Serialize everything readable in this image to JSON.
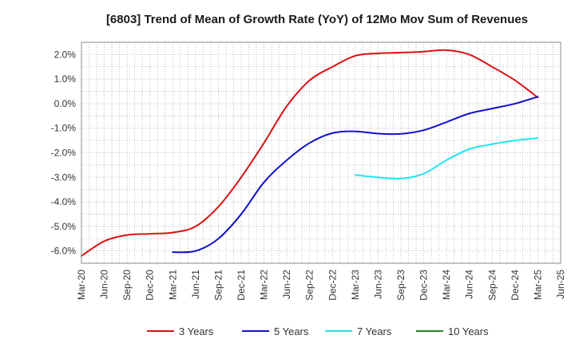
{
  "chart_data": {
    "type": "line",
    "title": "[6803]  Trend of Mean of Growth Rate (YoY) of 12Mo Mov Sum of Revenues",
    "xlabel": "",
    "ylabel": "",
    "x_ticks": [
      "Mar-20",
      "Jun-20",
      "Sep-20",
      "Dec-20",
      "Mar-21",
      "Jun-21",
      "Sep-21",
      "Dec-21",
      "Mar-22",
      "Jun-22",
      "Sep-22",
      "Dec-22",
      "Mar-23",
      "Jun-23",
      "Sep-23",
      "Dec-23",
      "Mar-24",
      "Jun-24",
      "Sep-24",
      "Dec-24",
      "Mar-25",
      "Jun-25"
    ],
    "y_ticks": [
      2.0,
      1.0,
      0.0,
      -1.0,
      -2.0,
      -3.0,
      -4.0,
      -5.0,
      -6.0
    ],
    "y_tick_labels": [
      "2.0%",
      "1.0%",
      "0.0%",
      "-1.0%",
      "-2.0%",
      "-3.0%",
      "-4.0%",
      "-5.0%",
      "-6.0%"
    ],
    "ylim": [
      -6.5,
      2.5
    ],
    "grid": true,
    "legend_position": "bottom",
    "series": [
      {
        "name": "3 Years",
        "color": "#dd1111",
        "values": [
          -6.2,
          -5.6,
          -5.35,
          -5.3,
          -5.25,
          -5.0,
          -4.2,
          -3.0,
          -1.6,
          -0.1,
          0.95,
          1.5,
          1.95,
          2.05,
          2.08,
          2.12,
          2.18,
          2.0,
          1.5,
          0.95,
          0.25,
          null
        ]
      },
      {
        "name": "5 Years",
        "color": "#1111cc",
        "values": [
          null,
          null,
          null,
          null,
          -6.05,
          -6.0,
          -5.5,
          -4.5,
          -3.2,
          -2.3,
          -1.6,
          -1.2,
          -1.13,
          -1.22,
          -1.23,
          -1.08,
          -0.75,
          -0.4,
          -0.2,
          0.0,
          0.28,
          null
        ]
      },
      {
        "name": "7 Years",
        "color": "#22e5ee",
        "values": [
          null,
          null,
          null,
          null,
          null,
          null,
          null,
          null,
          null,
          null,
          null,
          null,
          -2.9,
          -3.0,
          -3.05,
          -2.85,
          -2.3,
          -1.85,
          -1.65,
          -1.5,
          -1.4,
          null
        ]
      },
      {
        "name": "10 Years",
        "color": "#228822",
        "values": [
          null,
          null,
          null,
          null,
          null,
          null,
          null,
          null,
          null,
          null,
          null,
          null,
          null,
          null,
          null,
          null,
          null,
          null,
          null,
          null,
          null,
          null
        ]
      }
    ]
  }
}
